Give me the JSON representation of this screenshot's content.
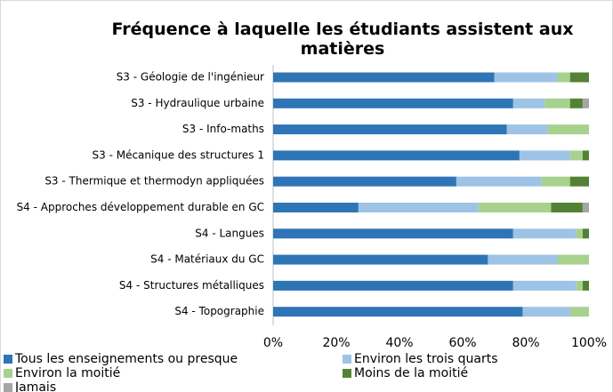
{
  "chart_data": {
    "type": "stacked-bar-horizontal",
    "title": "Fréquence à laquelle les étudiants assistent aux matières",
    "categories": [
      "S3 - Géologie de l'ingénieur",
      "S3 - Hydraulique urbaine",
      "S3 - Info-maths",
      "S3 - Mécanique des structures 1",
      "S3 - Thermique et thermodyn appliquées",
      "S4 - Approches développement durable en GC",
      "S4 - Langues",
      "S4 - Matériaux du GC",
      "S4 - Structures métalliques",
      "S4 - Topographie"
    ],
    "series": [
      {
        "name": "Tous les enseignements ou presque",
        "color": "#2e75b6",
        "values": [
          70,
          76,
          74,
          78,
          58,
          27,
          76,
          68,
          76,
          79
        ]
      },
      {
        "name": "Environ les trois quarts",
        "color": "#9dc3e6",
        "values": [
          20,
          10,
          13,
          16,
          27,
          38,
          20,
          22,
          20,
          15
        ]
      },
      {
        "name": "Environ la moitié",
        "color": "#a9d18e",
        "values": [
          4,
          8,
          13,
          4,
          9,
          23,
          2,
          10,
          2,
          6
        ]
      },
      {
        "name": "Moins de la moitié",
        "color": "#548235",
        "values": [
          6,
          4,
          0,
          2,
          6,
          10,
          2,
          0,
          2,
          0
        ]
      },
      {
        "name": "Jamais",
        "color": "#a5a5a5",
        "values": [
          0,
          2,
          0,
          0,
          0,
          2,
          0,
          0,
          0,
          0
        ]
      }
    ],
    "xlim": [
      0,
      100
    ],
    "xticks": [
      {
        "value": 0,
        "label": "0%"
      },
      {
        "value": 20,
        "label": "20%"
      },
      {
        "value": 40,
        "label": "40%"
      },
      {
        "value": 60,
        "label": "60%"
      },
      {
        "value": 80,
        "label": "80%"
      },
      {
        "value": 100,
        "label": "100%"
      }
    ],
    "grid": false
  }
}
